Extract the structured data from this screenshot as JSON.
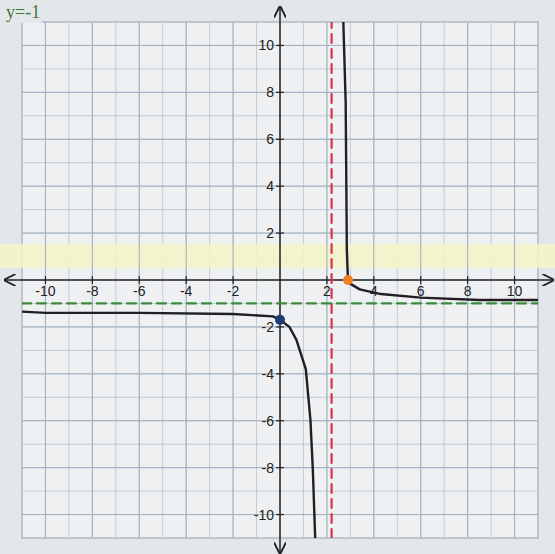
{
  "chart_data": {
    "type": "line",
    "annotations": [
      "y=-1"
    ],
    "xlim": [
      -11,
      11
    ],
    "ylim": [
      -11,
      11
    ],
    "xticks": [
      -10,
      -8,
      -6,
      -4,
      -2,
      2,
      4,
      6,
      8,
      10
    ],
    "yticks": [
      -10,
      -8,
      -6,
      -4,
      -2,
      2,
      4,
      6,
      8,
      10
    ],
    "grid": true,
    "series": [
      {
        "type": "line",
        "color": "#1f1f24",
        "line_style": "solid",
        "x": [
          -11,
          -10,
          -6,
          -2,
          -0.3,
          0,
          0.4,
          0.7,
          1.1,
          1.3,
          1.4,
          1.5
        ],
        "values": [
          -1.35,
          -1.4,
          -1.4,
          -1.45,
          -1.55,
          -1.7,
          -2.0,
          -2.55,
          -3.8,
          -6,
          -8.1,
          -11
        ]
      },
      {
        "type": "line",
        "color": "#1f1f24",
        "line_style": "solid",
        "x": [
          2.7,
          2.8,
          2.85,
          2.9,
          3.4,
          4.3,
          6,
          8.5,
          11
        ],
        "values": [
          11,
          7.6,
          1.3,
          -0.1,
          -0.4,
          -0.6,
          -0.75,
          -0.85,
          -0.85
        ]
      },
      {
        "type": "line",
        "color": "#d9324a",
        "line_style": "dashed",
        "x": [
          2.2,
          2.2
        ],
        "values": [
          -11,
          11
        ]
      },
      {
        "type": "line",
        "color": "#3d8a3a",
        "line_style": "dashed",
        "x": [
          -11,
          11
        ],
        "values": [
          -1,
          -1
        ]
      },
      {
        "type": "scatter",
        "color": "#1f3b73",
        "marker": "circle",
        "x": [
          0
        ],
        "values": [
          -1.7
        ]
      },
      {
        "type": "scatter",
        "color": "#f07f1e",
        "marker": "circle",
        "x": [
          2.9
        ],
        "values": [
          0
        ]
      }
    ]
  }
}
